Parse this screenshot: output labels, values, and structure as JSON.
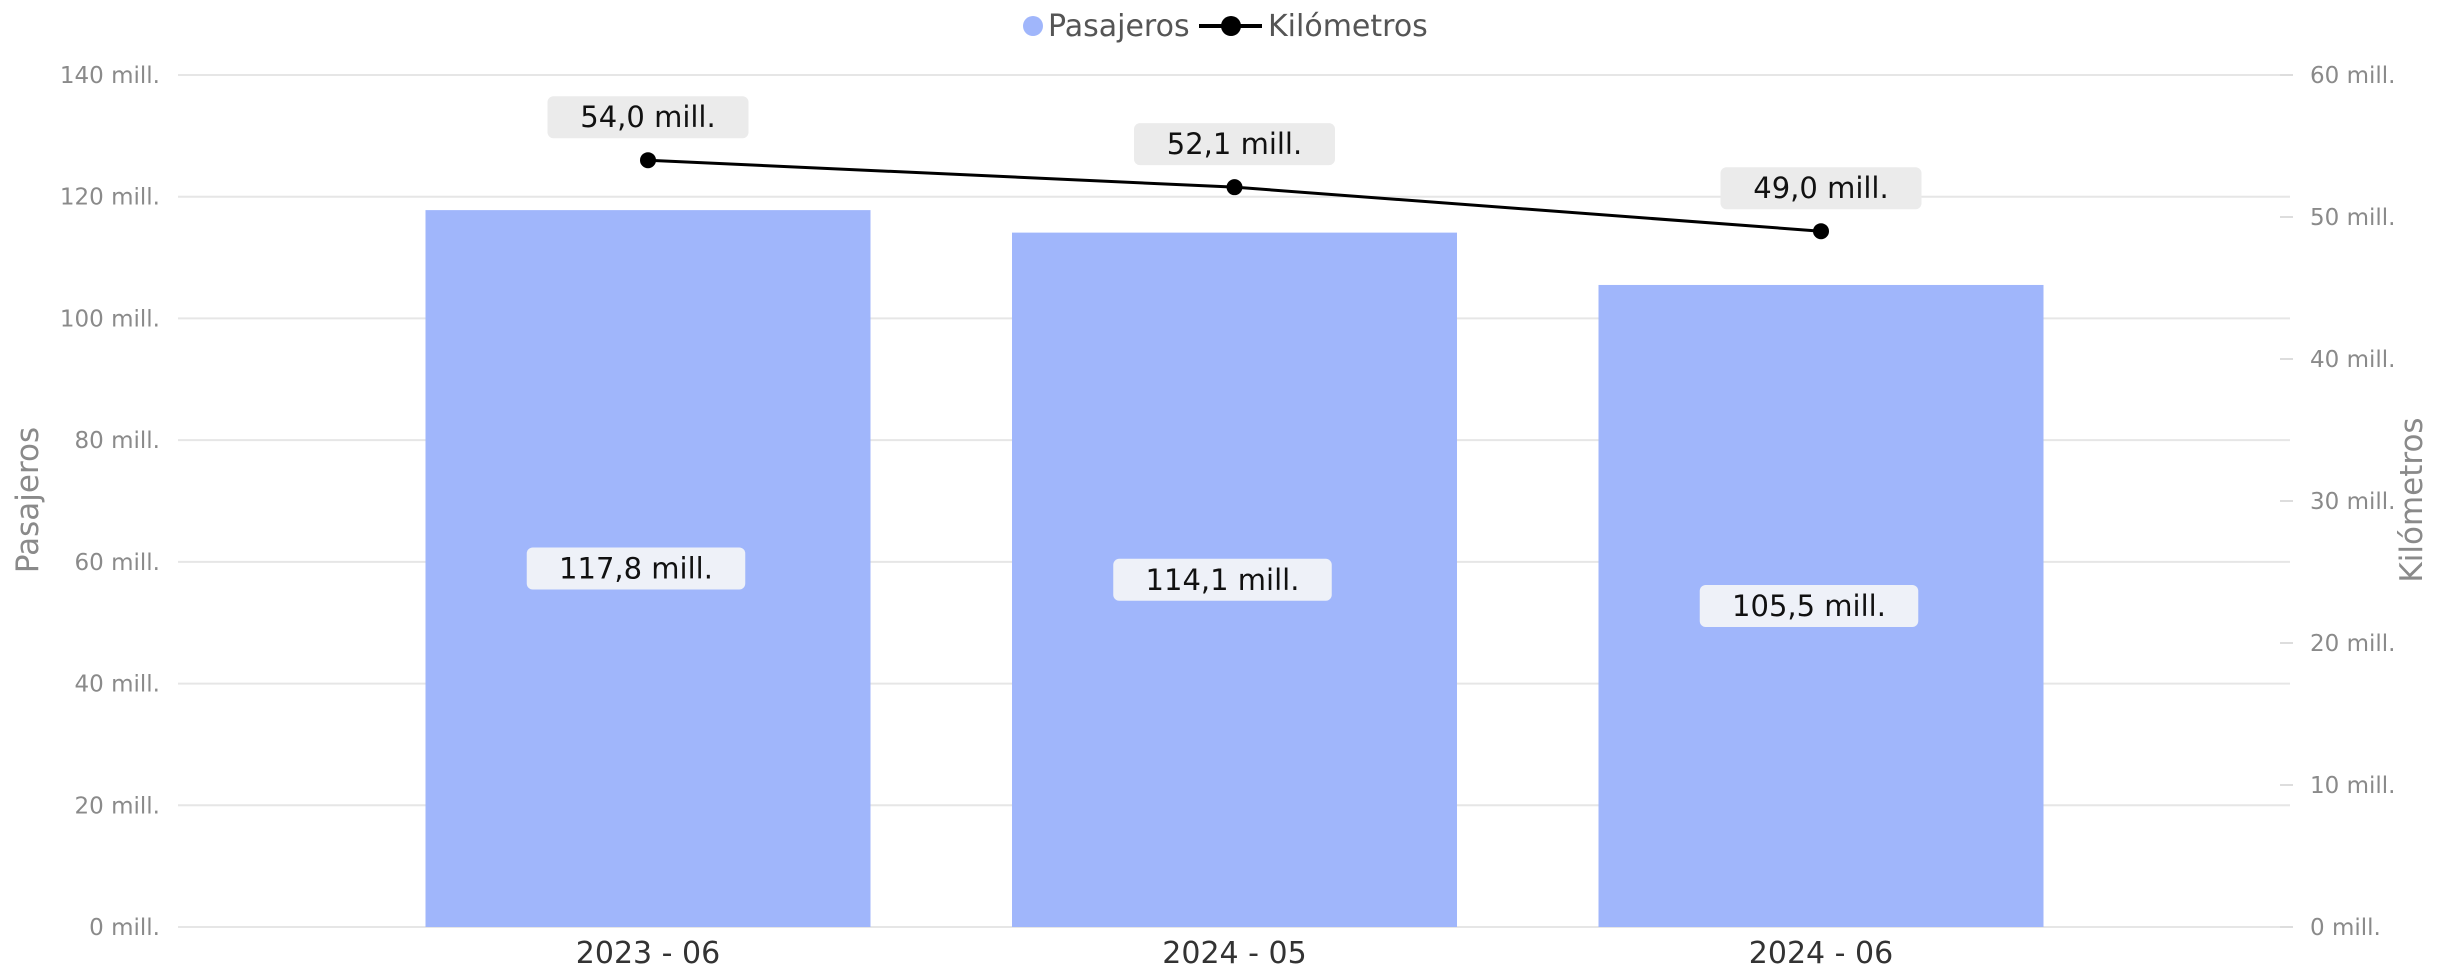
{
  "legend": {
    "passengers": "Pasajeros",
    "kilometers": "Kilómetros"
  },
  "chart_data": {
    "type": "bar",
    "categories": [
      "2023 - 06",
      "2024 - 05",
      "2024 - 06"
    ],
    "series": [
      {
        "name": "Pasajeros",
        "type": "bar",
        "axis": "left",
        "values": [
          117.8,
          114.1,
          105.5
        ],
        "labels": [
          "117,8 mill.",
          "114,1 mill.",
          "105,5 mill."
        ],
        "color": "#a0b6fb"
      },
      {
        "name": "Kilómetros",
        "type": "line",
        "axis": "right",
        "values": [
          54.0,
          52.1,
          49.0
        ],
        "labels": [
          "54,0 mill.",
          "52,1 mill.",
          "49,0 mill."
        ],
        "color": "#000000"
      }
    ],
    "y_left": {
      "label": "Pasajeros",
      "ylim": [
        0,
        140
      ],
      "ticks": [
        0,
        20,
        40,
        60,
        80,
        100,
        120,
        140
      ],
      "tick_labels": [
        "0 mill.",
        "20 mill.",
        "40 mill.",
        "60 mill.",
        "80 mill.",
        "100 mill.",
        "120 mill.",
        "140 mill."
      ]
    },
    "y_right": {
      "label": "Kilómetros",
      "ylim": [
        0,
        60
      ],
      "ticks": [
        0,
        10,
        20,
        30,
        40,
        50,
        60
      ],
      "tick_labels": [
        "0 mill.",
        "10 mill.",
        "20 mill.",
        "30 mill.",
        "40 mill.",
        "50 mill.",
        "60 mill."
      ]
    },
    "grid": true,
    "legend_position": "top-center"
  }
}
